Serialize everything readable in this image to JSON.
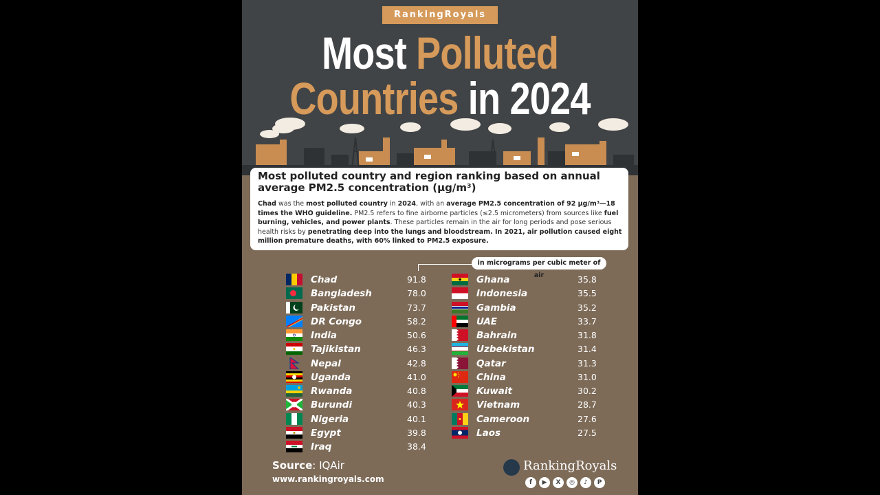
{
  "brand_tag": "RankingRoyals",
  "title": {
    "line1_white": "Most",
    "line1_accent": "Polluted",
    "line2_accent": "Countries",
    "line2_white": "in 2024"
  },
  "info": {
    "heading": "Most polluted country and region ranking based on annual average PM2.5 concentration (μg/m³)",
    "p_1": "Chad",
    "p_2": " was the ",
    "p_3": "most polluted country",
    "p_4": " in ",
    "p_5": "2024",
    "p_6": ", with an ",
    "p_7": "average PM2.5 concentration of 92 μg/m³—18 times the WHO guideline.",
    "p_8": " PM2.5 refers to fine airborne particles (≤2.5 micrometers) from sources like ",
    "p_9": "fuel burning, vehicles, and power plants",
    "p_10": ". These particles remain in the air for long periods and pose serious health risks by ",
    "p_11": "penetrating deep into the lungs and bloodstream. In 2021, air pollution caused eight million premature deaths, with 60% linked to PM2.5 exposure."
  },
  "unit_label": "in micrograms per cubic meter of air",
  "chart_data": {
    "type": "table",
    "columns": [
      [
        {
          "country": "Chad",
          "value": 91.8,
          "label": "91.8"
        },
        {
          "country": "Bangladesh",
          "value": 78.0,
          "label": "78.0"
        },
        {
          "country": "Pakistan",
          "value": 73.7,
          "label": "73.7"
        },
        {
          "country": "DR Congo",
          "value": 58.2,
          "label": "58.2"
        },
        {
          "country": "India",
          "value": 50.6,
          "label": "50.6"
        },
        {
          "country": "Tajikistan",
          "value": 46.3,
          "label": "46.3"
        },
        {
          "country": "Nepal",
          "value": 42.8,
          "label": "42.8"
        },
        {
          "country": "Uganda",
          "value": 41.0,
          "label": "41.0"
        },
        {
          "country": "Rwanda",
          "value": 40.8,
          "label": "40.8"
        },
        {
          "country": "Burundi",
          "value": 40.3,
          "label": "40.3"
        },
        {
          "country": "Nigeria",
          "value": 40.1,
          "label": "40.1"
        },
        {
          "country": "Egypt",
          "value": 39.8,
          "label": "39.8"
        },
        {
          "country": "Iraq",
          "value": 38.4,
          "label": "38.4"
        }
      ],
      [
        {
          "country": "Ghana",
          "value": 35.8,
          "label": "35.8"
        },
        {
          "country": "Indonesia",
          "value": 35.5,
          "label": "35.5"
        },
        {
          "country": "Gambia",
          "value": 35.2,
          "label": "35.2"
        },
        {
          "country": "UAE",
          "value": 33.7,
          "label": "33.7"
        },
        {
          "country": "Bahrain",
          "value": 31.8,
          "label": "31.8"
        },
        {
          "country": "Uzbekistan",
          "value": 31.4,
          "label": "31.4"
        },
        {
          "country": "Qatar",
          "value": 31.3,
          "label": "31.3"
        },
        {
          "country": "China",
          "value": 31.0,
          "label": "31.0"
        },
        {
          "country": "Kuwait",
          "value": 30.2,
          "label": "30.2"
        },
        {
          "country": "Vietnam",
          "value": 28.7,
          "label": "28.7"
        },
        {
          "country": "Cameroon",
          "value": 27.6,
          "label": "27.6"
        },
        {
          "country": "Laos",
          "value": 27.5,
          "label": "27.5"
        }
      ]
    ]
  },
  "footer": {
    "source_label": "Source",
    "source_value": ": IQAir",
    "website": "www.rankingroyals.com",
    "logo_name": "RankingRoyals",
    "socials": [
      "facebook-icon",
      "youtube-icon",
      "x-icon",
      "instagram-icon",
      "tiktok-icon",
      "pinterest-icon"
    ]
  },
  "colors": {
    "background": "#7d6b58",
    "header": "#414446",
    "accent": "#d69a5a"
  }
}
